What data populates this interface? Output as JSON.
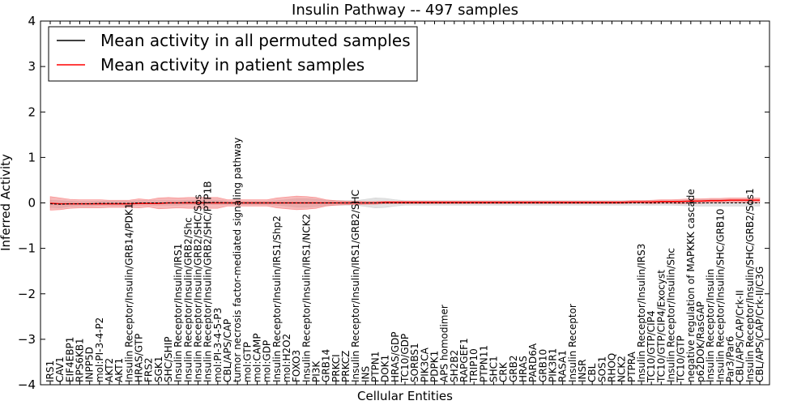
{
  "chart_data": {
    "type": "line",
    "title": "Insulin Pathway -- 497 samples",
    "xlabel": "Cellular Entities",
    "ylabel": "Inferred Activity",
    "ylim": [
      -4,
      4
    ],
    "yticks": [
      "−4",
      "−3",
      "−2",
      "−1",
      "0",
      "1",
      "2",
      "3",
      "4"
    ],
    "grid": false,
    "legend_position": "top-left",
    "categories": [
      "IRS1",
      "CAV1",
      "EIF4EBP1",
      "RPS6KB1",
      "INPP5D",
      "mol:PI-3-4-P2",
      "AKT2",
      "AKT1",
      "Insulin Receptor/Insulin/GRB14/PDK1",
      "HRAS/GTP",
      "FRS2",
      "SGK1",
      "SHC/SHIP",
      "Insulin Receptor/Insulin/IRS1",
      "Insulin Receptor/Insulin/GRB2/Shc",
      "Insulin Receptor/Insulin/GRB2/SHC/Sos",
      "Insulin Receptor/Insulin/GRB2/SHC/PTP1B",
      "mol:PI-3-4-5-P3",
      "CBL/APS/CAP",
      "tumor necrosis factor-mediated signaling pathway",
      "mol:GTP",
      "mol:CAMP",
      "mol:GDP",
      "Insulin Receptor/Insulin/IRS1/Shp2",
      "mol:H2O2",
      "FOXO3",
      "Insulin Receptor/Insulin/IRS1/NCK2",
      "PI3K",
      "GRB14",
      "PRKCI",
      "PRKCZ",
      "Insulin Receptor/Insulin/IRS1/GRB2/SHC",
      "INS",
      "PTPN1",
      "DOK1",
      "HRAS/GDP",
      "TC10/GDP",
      "SORBS1",
      "PIK3CA",
      "PDPK1",
      "APS homodimer",
      "SH2B2",
      "RAPGEF1",
      "TRIP10",
      "PTPN11",
      "SHC1",
      "CRK",
      "GRB2",
      "HRAS",
      "PARD6A",
      "GRB10",
      "PIK3R1",
      "RASA1",
      "Insulin Receptor",
      "INSR",
      "CBL",
      "SOS1",
      "RHOQ",
      "NCK2",
      "PTPRA",
      "Insulin Receptor/Insulin/IRS3",
      "TC10/GTP/CIP4",
      "TC10/GTP/CIP4/Exocyst",
      "Insulin Receptor/Insulin/Shc",
      "TC10/GTP",
      "negative regulation of MAPKKK cascade",
      "p62DOK/RasGAP",
      "Insulin Receptor/Insulin",
      "Insulin Receptor/Insulin/SHC/GRB10",
      "Par3/Par6",
      "CBL/APS/CAP/Crk-II",
      "Insulin Receptor/Insulin/SHC/GRB2/Sos1",
      "CBL/APS/CAP/Crk-II/C3G"
    ],
    "series": [
      {
        "name": "Mean activity in all permuted samples",
        "color": "#000000",
        "values": [
          -0.02,
          -0.03,
          -0.02,
          -0.02,
          -0.02,
          -0.01,
          -0.01,
          -0.01,
          -0.01,
          0.0,
          0.0,
          0.0,
          0.0,
          0.0,
          0.01,
          0.01,
          0.01,
          0.01,
          0.0,
          0.0,
          0.0,
          0.0,
          0.0,
          0.0,
          0.0,
          0.0,
          0.0,
          0.0,
          0.0,
          0.0,
          0.0,
          0.0,
          0.0,
          0.0,
          0.0,
          0.0,
          0.0,
          0.0,
          0.0,
          0.0,
          0.0,
          0.0,
          0.0,
          0.0,
          0.0,
          0.0,
          0.0,
          0.0,
          0.0,
          0.0,
          0.0,
          0.0,
          0.0,
          0.0,
          0.0,
          0.0,
          0.0,
          0.0,
          0.0,
          0.0,
          0.0,
          0.0,
          0.0,
          0.0,
          0.0,
          0.0,
          0.0,
          0.0,
          0.0,
          0.0,
          0.0,
          0.0,
          0.0
        ],
        "spread": [
          0.08,
          0.08,
          0.06,
          0.05,
          0.05,
          0.05,
          0.05,
          0.05,
          0.05,
          0.05,
          0.05,
          0.05,
          0.05,
          0.05,
          0.05,
          0.05,
          0.05,
          0.05,
          0.04,
          0.04,
          0.04,
          0.04,
          0.04,
          0.05,
          0.07,
          0.09,
          0.09,
          0.08,
          0.06,
          0.05,
          0.05,
          0.05,
          0.08,
          0.11,
          0.1,
          0.07,
          0.05,
          0.05,
          0.05,
          0.05,
          0.05,
          0.05,
          0.05,
          0.05,
          0.05,
          0.05,
          0.05,
          0.05,
          0.05,
          0.05,
          0.05,
          0.05,
          0.05,
          0.05,
          0.05,
          0.05,
          0.05,
          0.05,
          0.05,
          0.05,
          0.05,
          0.05,
          0.05,
          0.05,
          0.06,
          0.07,
          0.07,
          0.07,
          0.07,
          0.07,
          0.07,
          0.07,
          0.07
        ]
      },
      {
        "name": "Mean activity in patient samples",
        "color": "#ff0000",
        "values": [
          -0.01,
          -0.02,
          -0.02,
          -0.02,
          -0.02,
          -0.02,
          -0.02,
          -0.02,
          -0.02,
          -0.01,
          -0.01,
          -0.01,
          0.0,
          0.0,
          0.0,
          0.0,
          0.0,
          0.0,
          0.0,
          0.0,
          0.0,
          0.0,
          0.0,
          0.0,
          0.0,
          0.0,
          0.0,
          0.0,
          0.0,
          0.0,
          0.0,
          0.0,
          0.0,
          0.0,
          0.01,
          0.01,
          0.01,
          0.01,
          0.01,
          0.01,
          0.01,
          0.01,
          0.01,
          0.01,
          0.01,
          0.01,
          0.01,
          0.01,
          0.01,
          0.01,
          0.01,
          0.01,
          0.01,
          0.01,
          0.01,
          0.01,
          0.01,
          0.01,
          0.01,
          0.02,
          0.02,
          0.02,
          0.03,
          0.03,
          0.03,
          0.04,
          0.04,
          0.05,
          0.05,
          0.06,
          0.06,
          0.06,
          0.06
        ],
        "spread": [
          0.15,
          0.13,
          0.1,
          0.09,
          0.09,
          0.09,
          0.08,
          0.08,
          0.08,
          0.1,
          0.08,
          0.12,
          0.12,
          0.11,
          0.12,
          0.12,
          0.12,
          0.12,
          0.07,
          0.07,
          0.07,
          0.07,
          0.07,
          0.11,
          0.13,
          0.15,
          0.14,
          0.12,
          0.07,
          0.05,
          0.04,
          0.04,
          0.03,
          0.03,
          0.03,
          0.03,
          0.03,
          0.03,
          0.03,
          0.03,
          0.03,
          0.03,
          0.03,
          0.03,
          0.03,
          0.03,
          0.03,
          0.03,
          0.03,
          0.03,
          0.03,
          0.03,
          0.03,
          0.03,
          0.03,
          0.03,
          0.03,
          0.03,
          0.03,
          0.03,
          0.03,
          0.04,
          0.04,
          0.04,
          0.05,
          0.05,
          0.05,
          0.05,
          0.05,
          0.05,
          0.05,
          0.05,
          0.05
        ]
      }
    ]
  }
}
